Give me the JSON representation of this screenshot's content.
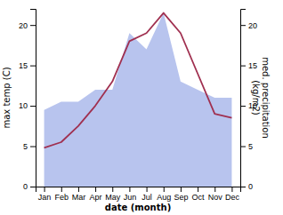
{
  "chart_data": {
    "type": "line",
    "categories": [
      "Jan",
      "Feb",
      "Mar",
      "Apr",
      "May",
      "Jun",
      "Jul",
      "Aug",
      "Sep",
      "Oct",
      "Nov",
      "Dec"
    ],
    "xlabel": "date (month)",
    "ylabel": "max temp (C)",
    "y2label": "med. precipitation\n(kg/m2)",
    "ylim": [
      0,
      22
    ],
    "yticks": [
      0,
      5,
      10,
      15,
      20
    ],
    "y2lim": [
      0,
      22
    ],
    "y2ticks": [
      0,
      5,
      10,
      15,
      20
    ],
    "series": [
      {
        "type": "area",
        "axis": "y2",
        "color": "#b8c4ee",
        "values": [
          9.5,
          10.5,
          10.5,
          12.0,
          12.0,
          19.0,
          17.0,
          21.5,
          13.0,
          12.0,
          11.0,
          11.0
        ]
      },
      {
        "type": "line",
        "color": "#a03050",
        "values": [
          4.8,
          5.5,
          7.5,
          10.0,
          13.0,
          18.0,
          19.0,
          21.5,
          19.0,
          14.0,
          9.0,
          8.5
        ]
      }
    ]
  }
}
